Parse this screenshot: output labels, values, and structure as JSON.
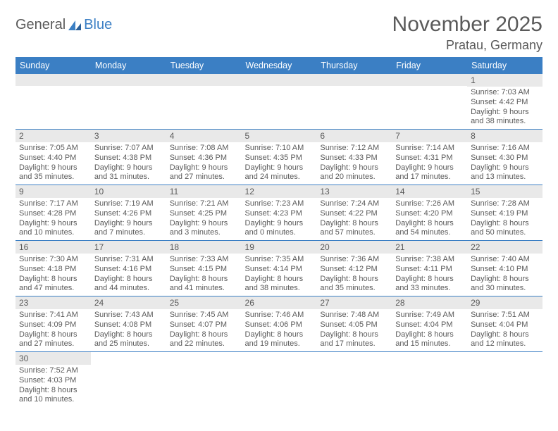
{
  "logo": {
    "text1": "General",
    "text2": "Blue"
  },
  "title": "November 2025",
  "location": "Pratau, Germany",
  "colors": {
    "header_bg": "#3b7fc4",
    "header_text": "#ffffff",
    "daynum_bg": "#e9e9e9",
    "body_text": "#5a5a5a",
    "border": "#3b7fc4",
    "page_bg": "#ffffff"
  },
  "fonts": {
    "title_size": 30,
    "location_size": 18,
    "dayname_size": 12.5,
    "daynum_size": 12,
    "body_size": 11
  },
  "daynames": [
    "Sunday",
    "Monday",
    "Tuesday",
    "Wednesday",
    "Thursday",
    "Friday",
    "Saturday"
  ],
  "weeks": [
    [
      null,
      null,
      null,
      null,
      null,
      null,
      {
        "n": "1",
        "sunrise": "7:03 AM",
        "sunset": "4:42 PM",
        "daylight": "9 hours and 38 minutes."
      }
    ],
    [
      {
        "n": "2",
        "sunrise": "7:05 AM",
        "sunset": "4:40 PM",
        "daylight": "9 hours and 35 minutes."
      },
      {
        "n": "3",
        "sunrise": "7:07 AM",
        "sunset": "4:38 PM",
        "daylight": "9 hours and 31 minutes."
      },
      {
        "n": "4",
        "sunrise": "7:08 AM",
        "sunset": "4:36 PM",
        "daylight": "9 hours and 27 minutes."
      },
      {
        "n": "5",
        "sunrise": "7:10 AM",
        "sunset": "4:35 PM",
        "daylight": "9 hours and 24 minutes."
      },
      {
        "n": "6",
        "sunrise": "7:12 AM",
        "sunset": "4:33 PM",
        "daylight": "9 hours and 20 minutes."
      },
      {
        "n": "7",
        "sunrise": "7:14 AM",
        "sunset": "4:31 PM",
        "daylight": "9 hours and 17 minutes."
      },
      {
        "n": "8",
        "sunrise": "7:16 AM",
        "sunset": "4:30 PM",
        "daylight": "9 hours and 13 minutes."
      }
    ],
    [
      {
        "n": "9",
        "sunrise": "7:17 AM",
        "sunset": "4:28 PM",
        "daylight": "9 hours and 10 minutes."
      },
      {
        "n": "10",
        "sunrise": "7:19 AM",
        "sunset": "4:26 PM",
        "daylight": "9 hours and 7 minutes."
      },
      {
        "n": "11",
        "sunrise": "7:21 AM",
        "sunset": "4:25 PM",
        "daylight": "9 hours and 3 minutes."
      },
      {
        "n": "12",
        "sunrise": "7:23 AM",
        "sunset": "4:23 PM",
        "daylight": "9 hours and 0 minutes."
      },
      {
        "n": "13",
        "sunrise": "7:24 AM",
        "sunset": "4:22 PM",
        "daylight": "8 hours and 57 minutes."
      },
      {
        "n": "14",
        "sunrise": "7:26 AM",
        "sunset": "4:20 PM",
        "daylight": "8 hours and 54 minutes."
      },
      {
        "n": "15",
        "sunrise": "7:28 AM",
        "sunset": "4:19 PM",
        "daylight": "8 hours and 50 minutes."
      }
    ],
    [
      {
        "n": "16",
        "sunrise": "7:30 AM",
        "sunset": "4:18 PM",
        "daylight": "8 hours and 47 minutes."
      },
      {
        "n": "17",
        "sunrise": "7:31 AM",
        "sunset": "4:16 PM",
        "daylight": "8 hours and 44 minutes."
      },
      {
        "n": "18",
        "sunrise": "7:33 AM",
        "sunset": "4:15 PM",
        "daylight": "8 hours and 41 minutes."
      },
      {
        "n": "19",
        "sunrise": "7:35 AM",
        "sunset": "4:14 PM",
        "daylight": "8 hours and 38 minutes."
      },
      {
        "n": "20",
        "sunrise": "7:36 AM",
        "sunset": "4:12 PM",
        "daylight": "8 hours and 35 minutes."
      },
      {
        "n": "21",
        "sunrise": "7:38 AM",
        "sunset": "4:11 PM",
        "daylight": "8 hours and 33 minutes."
      },
      {
        "n": "22",
        "sunrise": "7:40 AM",
        "sunset": "4:10 PM",
        "daylight": "8 hours and 30 minutes."
      }
    ],
    [
      {
        "n": "23",
        "sunrise": "7:41 AM",
        "sunset": "4:09 PM",
        "daylight": "8 hours and 27 minutes."
      },
      {
        "n": "24",
        "sunrise": "7:43 AM",
        "sunset": "4:08 PM",
        "daylight": "8 hours and 25 minutes."
      },
      {
        "n": "25",
        "sunrise": "7:45 AM",
        "sunset": "4:07 PM",
        "daylight": "8 hours and 22 minutes."
      },
      {
        "n": "26",
        "sunrise": "7:46 AM",
        "sunset": "4:06 PM",
        "daylight": "8 hours and 19 minutes."
      },
      {
        "n": "27",
        "sunrise": "7:48 AM",
        "sunset": "4:05 PM",
        "daylight": "8 hours and 17 minutes."
      },
      {
        "n": "28",
        "sunrise": "7:49 AM",
        "sunset": "4:04 PM",
        "daylight": "8 hours and 15 minutes."
      },
      {
        "n": "29",
        "sunrise": "7:51 AM",
        "sunset": "4:04 PM",
        "daylight": "8 hours and 12 minutes."
      }
    ],
    [
      {
        "n": "30",
        "sunrise": "7:52 AM",
        "sunset": "4:03 PM",
        "daylight": "8 hours and 10 minutes."
      },
      null,
      null,
      null,
      null,
      null,
      null
    ]
  ],
  "labels": {
    "sunrise": "Sunrise: ",
    "sunset": "Sunset: ",
    "daylight": "Daylight: "
  }
}
